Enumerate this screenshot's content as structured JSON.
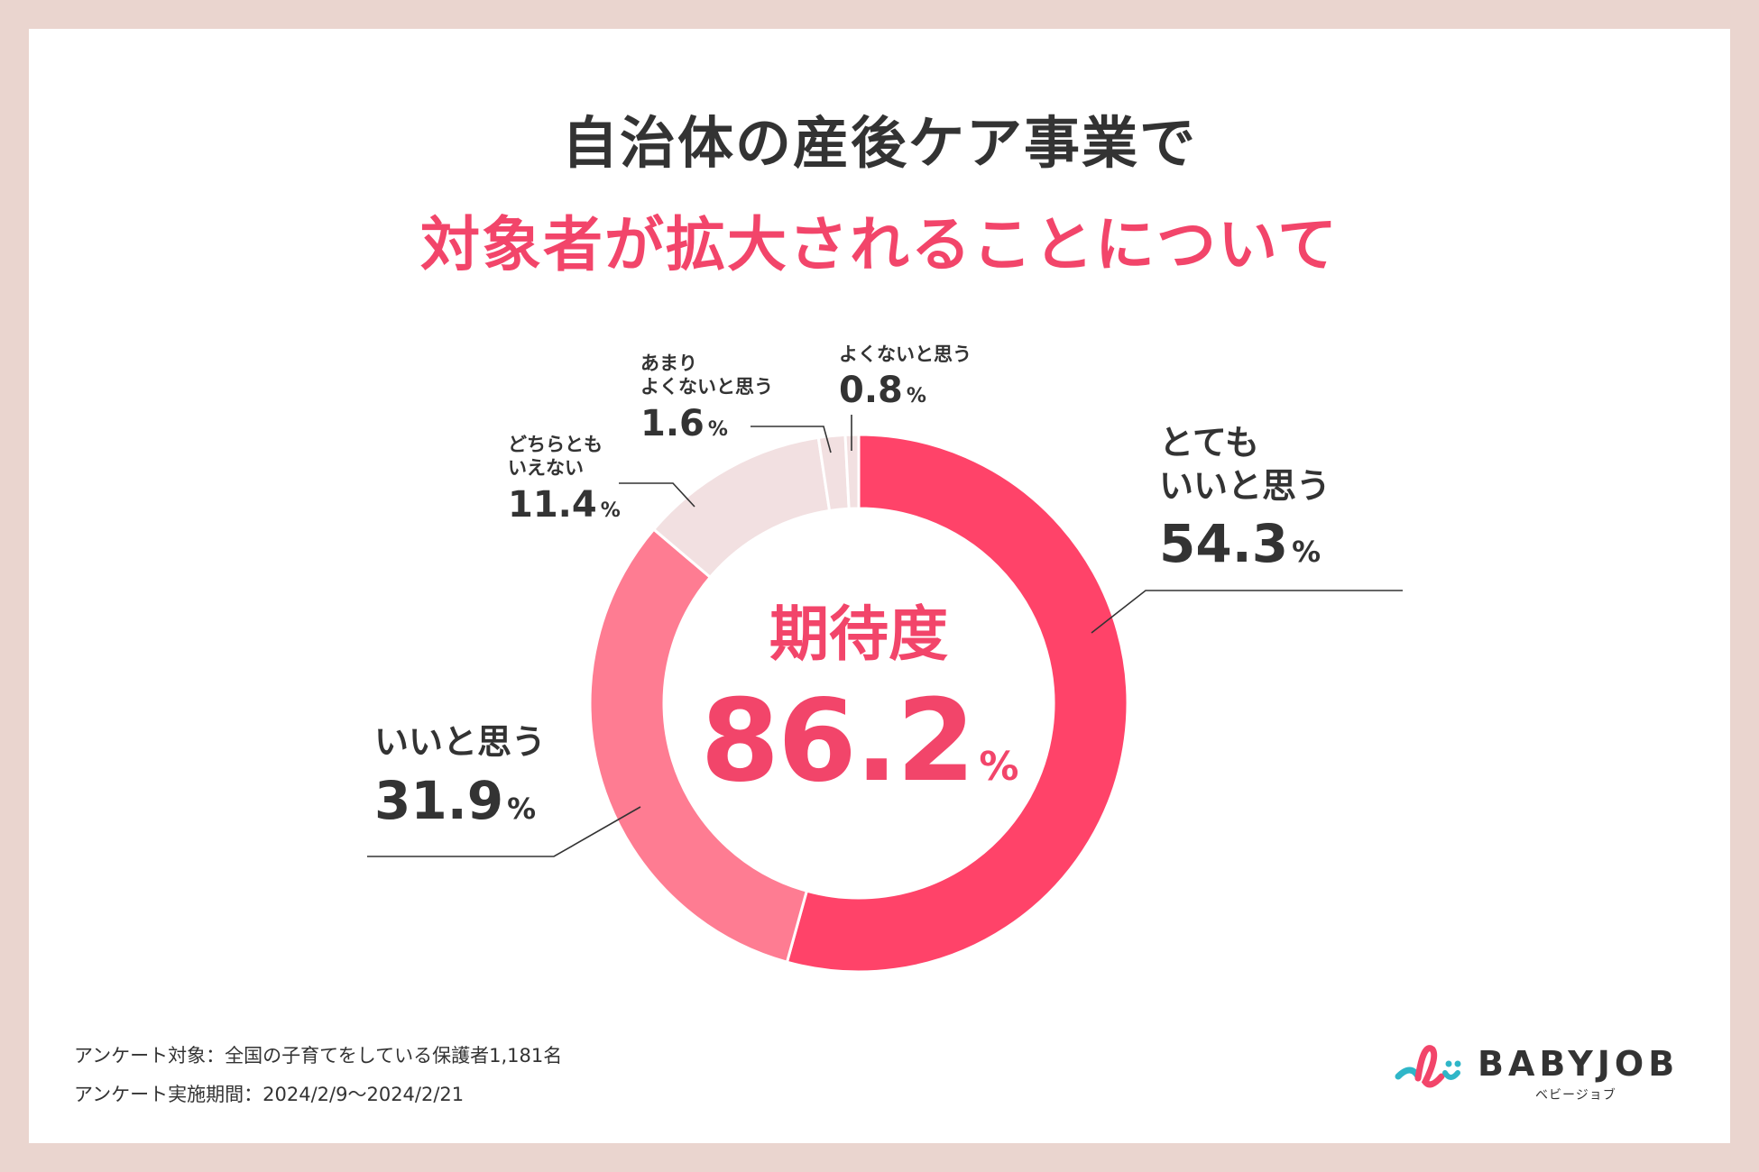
{
  "title_line1": "自治体の産後ケア事業で",
  "title_line2": "対象者が拡大されることについて",
  "center": {
    "label": "期待度",
    "value": "86.2",
    "unit": "%"
  },
  "chart_data": {
    "type": "pie",
    "title": "自治体の産後ケア事業で対象者が拡大されることについて",
    "categories": [
      "とても いいと思う",
      "いいと思う",
      "どちらとも いえない",
      "あまり よくないと思う",
      "よくないと思う"
    ],
    "values": [
      54.3,
      31.9,
      11.4,
      1.6,
      0.8
    ],
    "colors": [
      "#ff4369",
      "#fe7c92",
      "#f2e0e1",
      "#f2e0e1",
      "#f2e0e1"
    ],
    "unit": "%",
    "donut": true
  },
  "labels": [
    {
      "lines": [
        "とても",
        "いいと思う"
      ],
      "value": "54.3",
      "unit": "%"
    },
    {
      "lines": [
        "いいと思う"
      ],
      "value": "31.9",
      "unit": "%"
    },
    {
      "lines": [
        "どちらとも",
        "いえない"
      ],
      "value": "11.4",
      "unit": "%"
    },
    {
      "lines": [
        "あまり",
        "よくないと思う"
      ],
      "value": "1.6",
      "unit": "%"
    },
    {
      "lines": [
        "よくないと思う"
      ],
      "value": "0.8",
      "unit": "%"
    }
  ],
  "footer": {
    "target": "アンケート対象：全国の子育てをしている保護者1,181名",
    "period": "アンケート実施期間：2024/2/9〜2024/2/21"
  },
  "logo": {
    "name": "BABYJOB",
    "sub": "ベビージョブ"
  }
}
